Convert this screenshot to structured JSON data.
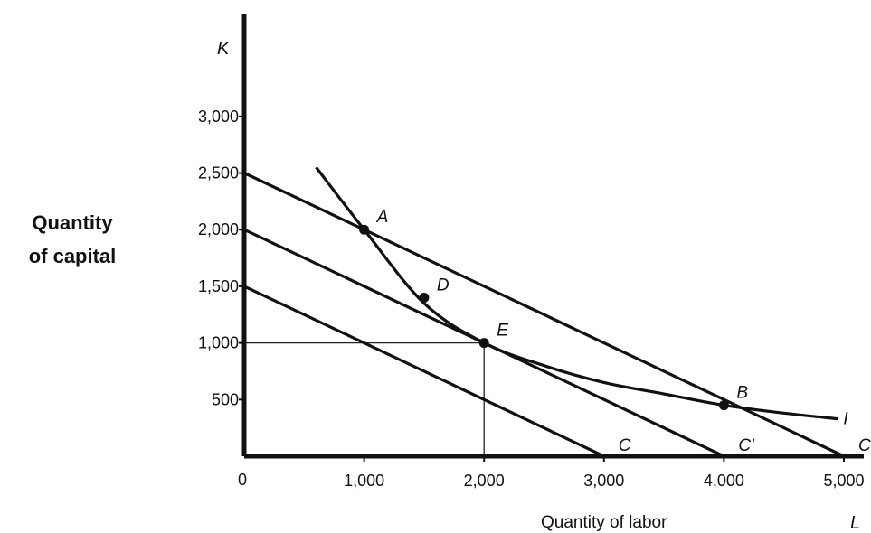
{
  "chart_data": {
    "type": "line",
    "ylabel": [
      "Quantity",
      "of capital"
    ],
    "xlabel": "Quantity of labor",
    "x_axis_letter": "L",
    "y_axis_letter": "K",
    "origin_label": "0",
    "x_ticks": [
      {
        "value": 1000,
        "label": "1,000"
      },
      {
        "value": 2000,
        "label": "2,000"
      },
      {
        "value": 3000,
        "label": "3,000"
      },
      {
        "value": 4000,
        "label": "4,000"
      },
      {
        "value": 5000,
        "label": "5,000"
      }
    ],
    "y_ticks": [
      {
        "value": 500,
        "label": "500"
      },
      {
        "value": 1000,
        "label": "1,000"
      },
      {
        "value": 1500,
        "label": "1,500"
      },
      {
        "value": 2000,
        "label": "2,000"
      },
      {
        "value": 2500,
        "label": "2,500"
      },
      {
        "value": 3000,
        "label": "3,000"
      }
    ],
    "xlim": [
      0,
      5000
    ],
    "ylim": [
      0,
      3200
    ],
    "isocost_lines": [
      {
        "name": "C",
        "x": [
          0,
          3000
        ],
        "y": [
          1500,
          0
        ]
      },
      {
        "name": "C'",
        "x": [
          0,
          4000
        ],
        "y": [
          2000,
          0
        ]
      },
      {
        "name": "C''",
        "x": [
          0,
          5000
        ],
        "y": [
          2500,
          0
        ]
      }
    ],
    "isoquant": {
      "name": "I",
      "x": [
        600,
        1000,
        1500,
        2000,
        2500,
        3000,
        3500,
        4000,
        4500,
        4950
      ],
      "y": [
        2550,
        2000,
        1350,
        1000,
        800,
        650,
        550,
        450,
        380,
        330
      ]
    },
    "points": [
      {
        "label": "A",
        "x": 1000,
        "y": 2000
      },
      {
        "label": "D",
        "x": 1500,
        "y": 1400
      },
      {
        "label": "E",
        "x": 2000,
        "y": 1000
      },
      {
        "label": "B",
        "x": 4000,
        "y": 450
      }
    ],
    "guides": [
      {
        "from": [
          0,
          1000
        ],
        "to": [
          2000,
          1000
        ]
      },
      {
        "from": [
          2000,
          1000
        ],
        "to": [
          2000,
          0
        ]
      }
    ]
  }
}
